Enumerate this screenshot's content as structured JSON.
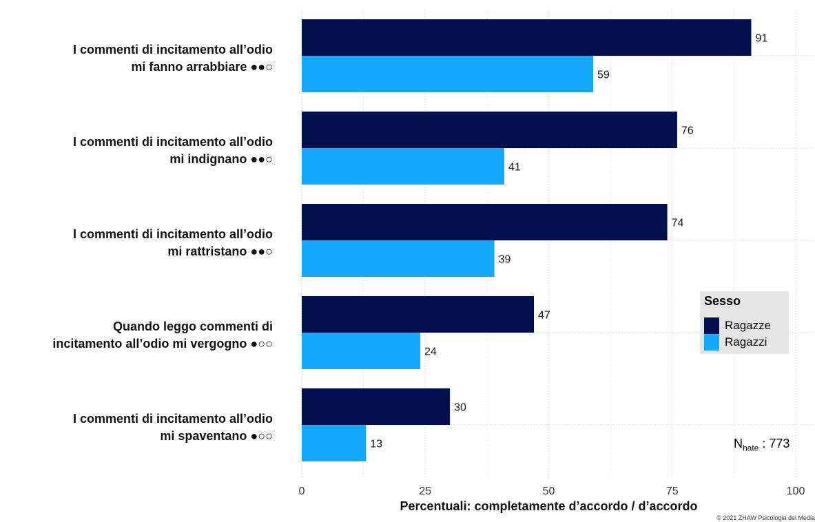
{
  "chart_data": {
    "type": "bar",
    "orientation": "horizontal",
    "categories": [
      [
        "I commenti di incitamento all’odio",
        "mi fanno arrabbiare ●●○"
      ],
      [
        "I commenti di incitamento all’odio",
        "mi indignano ●●○"
      ],
      [
        "I commenti di incitamento all’odio",
        "mi rattristano ●●○"
      ],
      [
        "Quando leggo commenti di",
        "incitamento all’odio mi vergogno ●○○"
      ],
      [
        "I commenti di incitamento all’odio",
        "mi spaventano ●○○"
      ]
    ],
    "series": [
      {
        "name": "Ragazze",
        "color": "#03104f",
        "values": [
          91,
          76,
          74,
          47,
          30
        ]
      },
      {
        "name": "Ragazzi",
        "color": "#12a9ff",
        "values": [
          59,
          41,
          39,
          24,
          13
        ]
      }
    ],
    "xlabel": "Percentuali:  completamente d’accordo / d’accordo",
    "xlim": [
      0,
      100
    ],
    "xticks": [
      0,
      25,
      50,
      75,
      100
    ],
    "grid": true,
    "legend": {
      "title": "Sesso",
      "position": "right"
    }
  },
  "note": {
    "prefix": "N",
    "sub": "hate",
    "suffix": " : 773"
  },
  "copyright": "© 2021 ZHAW Psicologia dei Media"
}
